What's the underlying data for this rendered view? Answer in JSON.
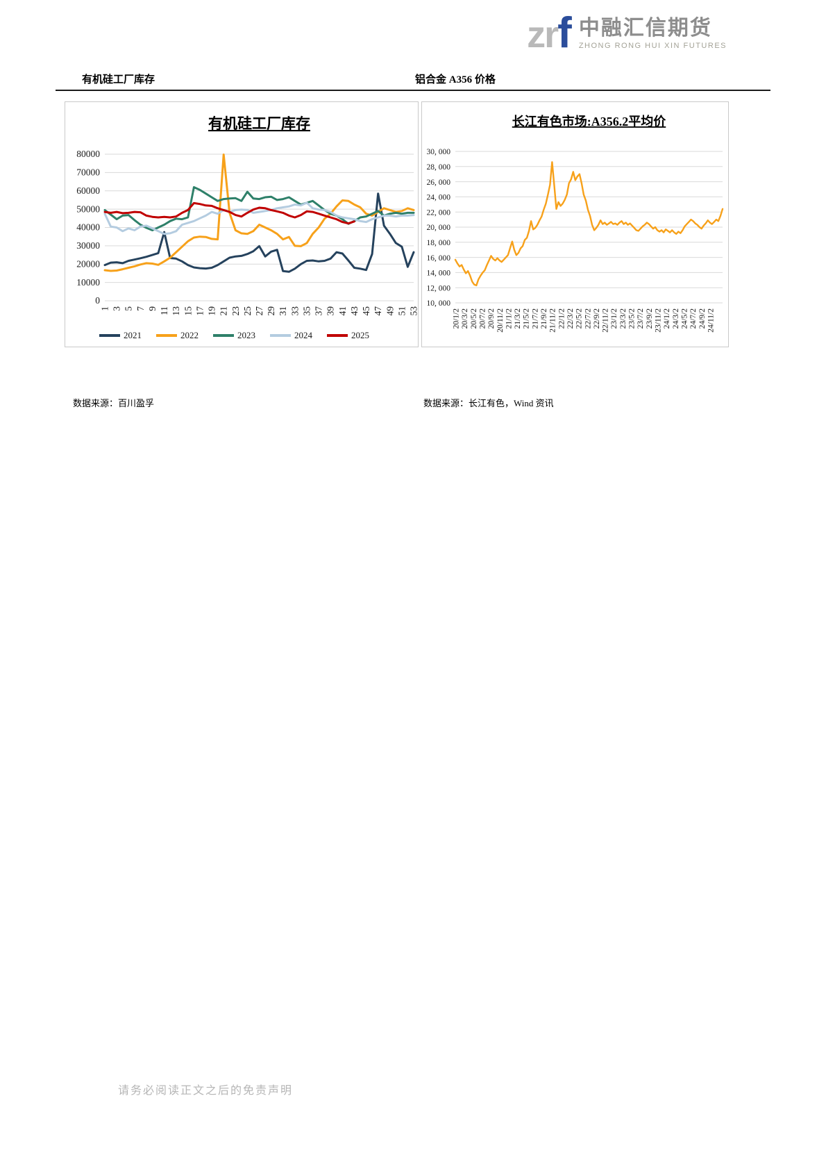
{
  "logo": {
    "zr": "zr",
    "f": "f",
    "company_cn": "中融汇信期货",
    "company_en": "ZHONG RONG HUI XIN FUTURES",
    "colors": {
      "zr": "#b9b9b9",
      "f": "#2b4d9b",
      "cn": "#8d8d8d",
      "en": "#a3a296"
    }
  },
  "sections": {
    "left_header": "有机硅工厂库存",
    "right_header": "铝合金 A356 价格",
    "left_source": "数据来源：百川盈孚",
    "right_source": "数据来源：长江有色，Wind 资讯"
  },
  "page": {
    "footer_disclaimer": "请务必阅读正文之后的免责声明"
  },
  "chart_data": [
    {
      "name": "silicone-inventory",
      "type": "line",
      "title": "有机硅工厂库存",
      "xlabel": "",
      "ylabel": "",
      "x_numeric": true,
      "x_count": 53,
      "x_labels": [
        "1",
        "3",
        "5",
        "7",
        "9",
        "11",
        "13",
        "15",
        "17",
        "19",
        "21",
        "23",
        "25",
        "27",
        "29",
        "31",
        "33",
        "35",
        "37",
        "39",
        "41",
        "43",
        "45",
        "47",
        "49",
        "51",
        "53"
      ],
      "ylim": [
        0,
        80000
      ],
      "y_step": 10000,
      "y_tick_labels": [
        "0",
        "10000",
        "20000",
        "30000",
        "40000",
        "50000",
        "60000",
        "70000",
        "80000"
      ],
      "grid": true,
      "legend_position": "bottom",
      "series": [
        {
          "name": "2021",
          "color": "#25425D",
          "values": [
            19500,
            20800,
            21000,
            20500,
            21800,
            22500,
            23200,
            24000,
            25000,
            26000,
            37500,
            23300,
            23000,
            21500,
            19500,
            18200,
            17800,
            17600,
            18000,
            19500,
            21500,
            23500,
            24200,
            24500,
            25500,
            27000,
            29800,
            24200,
            26800,
            27800,
            16200,
            15800,
            17500,
            20000,
            21800,
            22000,
            21500,
            21800,
            23000,
            26500,
            25800,
            22000,
            18000,
            17500,
            16800,
            25500,
            58500,
            41000,
            36500,
            31500,
            29500,
            18500,
            26500
          ]
        },
        {
          "name": "2022",
          "color": "#F7A11A",
          "values": [
            16700,
            16300,
            16500,
            17200,
            18000,
            18800,
            19800,
            20500,
            20300,
            19600,
            21500,
            23500,
            26500,
            29500,
            32500,
            34500,
            35000,
            34800,
            33800,
            33500,
            79800,
            48000,
            38500,
            36800,
            36500,
            38000,
            41500,
            40000,
            38500,
            36500,
            33500,
            34800,
            30000,
            29800,
            31500,
            36500,
            40000,
            44800,
            47500,
            51500,
            54800,
            54500,
            52500,
            51000,
            47500,
            46500,
            48500,
            50500,
            49500,
            48500,
            49000,
            50500,
            49500
          ]
        },
        {
          "name": "2023",
          "color": "#2E8069",
          "values": [
            49500,
            47000,
            44500,
            46500,
            46800,
            44000,
            41500,
            39800,
            38500,
            40000,
            41500,
            43500,
            44800,
            44500,
            45500,
            62000,
            60500,
            58500,
            56500,
            54500,
            55500,
            55800,
            56000,
            54500,
            59500,
            55800,
            55500,
            56500,
            56800,
            55000,
            55500,
            56500,
            54500,
            52500,
            53500,
            54500,
            52000,
            49500,
            47500,
            46500,
            44500,
            42000,
            43500,
            45500,
            46000,
            47500,
            49000,
            46500,
            47500,
            48000,
            47500,
            48000,
            48000
          ]
        },
        {
          "name": "2024",
          "color": "#B4CCE0",
          "values": [
            47500,
            40500,
            40000,
            38000,
            39500,
            38500,
            40500,
            41000,
            39500,
            38000,
            36500,
            36800,
            38000,
            41500,
            42500,
            43500,
            45000,
            46500,
            48500,
            47500,
            49500,
            48500,
            49500,
            49800,
            49500,
            48000,
            48500,
            49000,
            49500,
            50500,
            51000,
            51500,
            52500,
            52000,
            53500,
            50500,
            49800,
            49500,
            48500,
            46500,
            45500,
            45000,
            44500,
            43500,
            43000,
            44500,
            45500,
            46500,
            46500,
            46000,
            46500,
            46500,
            46800
          ]
        },
        {
          "name": "2025",
          "color": "#C00000",
          "values": [
            48500,
            48000,
            48500,
            47800,
            48000,
            48500,
            48300,
            46500,
            45800,
            45500,
            45800,
            45500,
            46000,
            48000,
            49500,
            53300,
            52800,
            52000,
            51800,
            50500,
            49500,
            48500,
            46800,
            46000,
            48000,
            49800,
            50800,
            50500,
            49500,
            48800,
            48000,
            46500,
            45500,
            46800,
            48800,
            48500,
            47500,
            46500,
            45500,
            44500,
            43000,
            42200,
            43300
          ]
        }
      ]
    },
    {
      "name": "a356-price",
      "type": "line",
      "title": "长江有色市场:A356.2平均价",
      "xlabel": "",
      "ylabel": "",
      "x_numeric": false,
      "x_count": 128,
      "x_labels": [
        "20/1/2",
        "20/3/2",
        "20/5/2",
        "20/7/2",
        "20/9/2",
        "20/11/2",
        "21/1/2",
        "21/3/2",
        "21/5/2",
        "21/7/2",
        "21/9/2",
        "21/11/2",
        "22/1/2",
        "22/3/2",
        "22/5/2",
        "22/7/2",
        "22/9/2",
        "22/11/2",
        "23/1/2",
        "23/3/2",
        "23/5/2",
        "23/7/2",
        "23/9/2",
        "23/11/2",
        "24/1/2",
        "24/3/2",
        "24/5/2",
        "24/7/2",
        "24/9/2",
        "24/11/2"
      ],
      "ylim": [
        10000,
        30000
      ],
      "y_step": 2000,
      "y_tick_labels": [
        "10, 000",
        "12, 000",
        "14, 000",
        "16, 000",
        "18, 000",
        "20, 000",
        "22, 000",
        "24, 000",
        "26, 000",
        "28, 000",
        "30, 000"
      ],
      "grid": true,
      "legend_position": "none",
      "series": [
        {
          "name": "长江有色市场:A356.2平均价",
          "color": "#F7A11A",
          "values": [
            15700,
            15200,
            14800,
            15000,
            14400,
            13900,
            14200,
            13600,
            12800,
            12400,
            12300,
            13100,
            13600,
            14000,
            14300,
            15000,
            15600,
            16200,
            15800,
            15600,
            15900,
            15600,
            15400,
            15700,
            16000,
            16300,
            17200,
            18100,
            17000,
            16300,
            16600,
            17200,
            17500,
            18300,
            18600,
            19500,
            20800,
            19700,
            19900,
            20300,
            20900,
            21400,
            22300,
            23100,
            24300,
            25600,
            28600,
            25500,
            22400,
            23300,
            22800,
            23100,
            23600,
            24300,
            25800,
            26300,
            27300,
            26200,
            26700,
            27000,
            25800,
            24300,
            23500,
            22300,
            21500,
            20300,
            19600,
            19900,
            20300,
            20900,
            20400,
            20600,
            20300,
            20500,
            20700,
            20400,
            20500,
            20300,
            20600,
            20800,
            20400,
            20600,
            20300,
            20500,
            20200,
            19900,
            19600,
            19500,
            19800,
            20100,
            20300,
            20600,
            20400,
            20100,
            19800,
            20000,
            19600,
            19400,
            19600,
            19300,
            19700,
            19500,
            19300,
            19600,
            19300,
            19100,
            19400,
            19200,
            19600,
            20100,
            20400,
            20700,
            21000,
            20800,
            20500,
            20300,
            20000,
            19800,
            20200,
            20500,
            20900,
            20600,
            20400,
            20700,
            21000,
            20800,
            21500,
            22400
          ]
        }
      ]
    }
  ]
}
